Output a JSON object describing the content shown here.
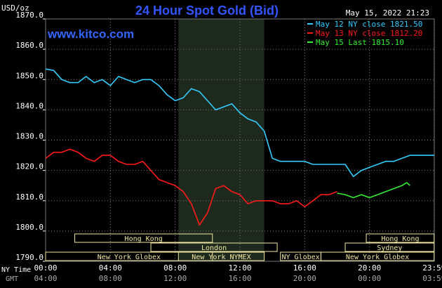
{
  "header": {
    "title": "24 Hour Spot Gold (Bid)",
    "unit": "USD/oz",
    "timestamp": "May 15, 2022 21:23",
    "site": "www.kitco.com"
  },
  "legend": [
    {
      "text": "May 12 NY close 1821.50",
      "color": "#33ccff"
    },
    {
      "text": "May 13 NY close 1812.20",
      "color": "#ff1a1a"
    },
    {
      "text": "May 15 Last 1815.10",
      "color": "#33ee33"
    }
  ],
  "colors": {
    "grid": "#808080",
    "shade": "#1e2a1e",
    "session_box": "#f0e6a0",
    "title": "#3355ff"
  },
  "axis": {
    "y_ticks": [
      "1870.0",
      "1860.0",
      "1850.0",
      "1840.0",
      "1830.0",
      "1820.0",
      "1810.0",
      "1800.0",
      "1790.0"
    ],
    "x_ticks_ny": [
      "00:00",
      "04:00",
      "08:00",
      "12:00",
      "16:00",
      "20:00",
      "23:59"
    ],
    "x_ticks_gmt": [
      "04:00",
      "08:00",
      "12:00",
      "16:00",
      "20:00",
      "00:00",
      "03:59"
    ],
    "ny_label": "NY Time",
    "gmt_label": "GMT"
  },
  "sessions": [
    {
      "label": "Hong Kong",
      "start": 1.8,
      "end": 10.3,
      "row": 0
    },
    {
      "label": "London",
      "start": 6.5,
      "end": 14.3,
      "row": 1
    },
    {
      "label": "New York Globex",
      "start": 0,
      "end": 10.3,
      "row": 2
    },
    {
      "label": "New York NYMEX",
      "start": 8.2,
      "end": 13.5,
      "row": 2
    },
    {
      "label": "NY Globex",
      "start": 14.5,
      "end": 17.0,
      "row": 2
    },
    {
      "label": "Hong Kong",
      "start": 19.8,
      "end": 23.99,
      "row": 0
    },
    {
      "label": "Sydney",
      "start": 18.5,
      "end": 23.99,
      "row": 1
    },
    {
      "label": "New York Globex",
      "start": 17.0,
      "end": 23.99,
      "row": 2
    }
  ],
  "chart_data": {
    "type": "line",
    "title": "24 Hour Spot Gold (Bid)",
    "ylabel": "USD/oz",
    "xlabel": "NY Time",
    "xlim": [
      0,
      24
    ],
    "ylim": [
      1790,
      1870
    ],
    "grid": true,
    "shaded_interval": [
      8.2,
      13.5
    ],
    "series": [
      {
        "name": "May 12 NY close 1821.50",
        "color": "#33ccff",
        "points": [
          [
            0,
            1853.5
          ],
          [
            0.5,
            1853
          ],
          [
            1,
            1850
          ],
          [
            1.5,
            1849
          ],
          [
            2,
            1849
          ],
          [
            2.5,
            1851
          ],
          [
            3,
            1849
          ],
          [
            3.5,
            1850
          ],
          [
            4,
            1848
          ],
          [
            4.5,
            1851
          ],
          [
            5,
            1850
          ],
          [
            5.5,
            1849
          ],
          [
            6,
            1850
          ],
          [
            6.5,
            1850
          ],
          [
            7,
            1848
          ],
          [
            7.5,
            1845
          ],
          [
            8,
            1843
          ],
          [
            8.5,
            1844
          ],
          [
            9,
            1847
          ],
          [
            9.5,
            1846
          ],
          [
            10,
            1843
          ],
          [
            10.5,
            1840
          ],
          [
            11,
            1841
          ],
          [
            11.5,
            1842
          ],
          [
            12,
            1839
          ],
          [
            12.5,
            1837
          ],
          [
            13,
            1836
          ],
          [
            13.5,
            1833
          ],
          [
            14,
            1824
          ],
          [
            14.5,
            1823
          ],
          [
            15,
            1823
          ],
          [
            15.5,
            1823
          ],
          [
            16,
            1823
          ],
          [
            16.5,
            1822
          ],
          [
            17,
            1822
          ],
          [
            17.5,
            1822
          ],
          [
            18,
            1822
          ],
          [
            18.5,
            1822
          ],
          [
            19,
            1818
          ],
          [
            19.5,
            1820
          ],
          [
            20,
            1821
          ],
          [
            20.5,
            1822
          ],
          [
            21,
            1823
          ],
          [
            21.5,
            1823
          ],
          [
            22,
            1824
          ],
          [
            22.5,
            1825
          ],
          [
            23,
            1825
          ],
          [
            23.5,
            1825
          ],
          [
            24,
            1825
          ]
        ]
      },
      {
        "name": "May 13 NY close 1812.20",
        "color": "#ff1a1a",
        "points": [
          [
            0,
            1824
          ],
          [
            0.5,
            1826
          ],
          [
            1,
            1826
          ],
          [
            1.5,
            1827
          ],
          [
            2,
            1826
          ],
          [
            2.5,
            1824
          ],
          [
            3,
            1823
          ],
          [
            3.5,
            1825
          ],
          [
            4,
            1825
          ],
          [
            4.5,
            1823
          ],
          [
            5,
            1822
          ],
          [
            5.5,
            1822
          ],
          [
            6,
            1823
          ],
          [
            6.5,
            1820
          ],
          [
            7,
            1817
          ],
          [
            7.5,
            1816
          ],
          [
            8,
            1815
          ],
          [
            8.5,
            1813
          ],
          [
            9,
            1809
          ],
          [
            9.5,
            1802
          ],
          [
            10,
            1806
          ],
          [
            10.5,
            1814
          ],
          [
            11,
            1815
          ],
          [
            11.5,
            1813
          ],
          [
            12,
            1812
          ],
          [
            12.5,
            1809
          ],
          [
            13,
            1810
          ],
          [
            13.5,
            1810
          ],
          [
            14,
            1810
          ],
          [
            14.5,
            1809
          ],
          [
            15,
            1809
          ],
          [
            15.5,
            1810
          ],
          [
            16,
            1808
          ],
          [
            16.5,
            1810
          ],
          [
            17,
            1812
          ],
          [
            17.5,
            1812
          ],
          [
            18,
            1813
          ]
        ]
      },
      {
        "name": "May 15 Last 1815.10",
        "color": "#33ee33",
        "points": [
          [
            18,
            1812.5
          ],
          [
            18.5,
            1812
          ],
          [
            19,
            1811
          ],
          [
            19.5,
            1812
          ],
          [
            20,
            1811
          ],
          [
            20.5,
            1812
          ],
          [
            21,
            1813
          ],
          [
            21.5,
            1814
          ],
          [
            22,
            1815
          ],
          [
            22.3,
            1816
          ],
          [
            22.5,
            1815
          ]
        ]
      }
    ]
  }
}
